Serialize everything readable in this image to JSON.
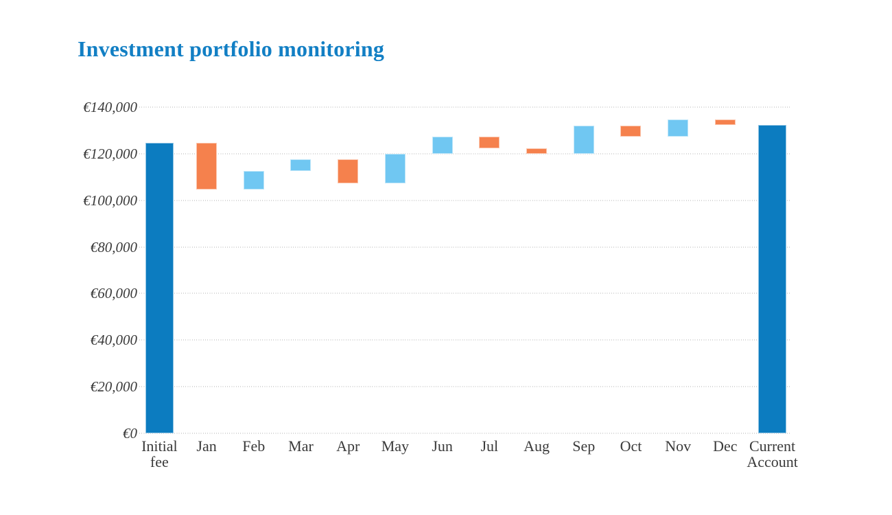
{
  "chart_data": {
    "type": "bar",
    "subtype": "waterfall",
    "title": "Investment portfolio monitoring",
    "currency_prefix": "€",
    "legend": "none",
    "categories": [
      "Initial fee",
      "Jan",
      "Feb",
      "Mar",
      "Apr",
      "May",
      "Jun",
      "Jul",
      "Aug",
      "Sep",
      "Oct",
      "Nov",
      "Dec",
      "Current Account"
    ],
    "bars": [
      {
        "label": "Initial fee",
        "label_lines": [
          "Initial",
          "fee"
        ],
        "role": "total",
        "start": 0,
        "end": 124800,
        "value": 124800
      },
      {
        "label": "Jan",
        "label_lines": [
          "Jan"
        ],
        "role": "decrease",
        "start": 124800,
        "end": 104700,
        "value": -20100
      },
      {
        "label": "Feb",
        "label_lines": [
          "Feb"
        ],
        "role": "increase",
        "start": 104700,
        "end": 112500,
        "value": 7800
      },
      {
        "label": "Mar",
        "label_lines": [
          "Mar"
        ],
        "role": "increase",
        "start": 112500,
        "end": 117500,
        "value": 5000
      },
      {
        "label": "Apr",
        "label_lines": [
          "Apr"
        ],
        "role": "decrease",
        "start": 117500,
        "end": 107400,
        "value": -10100
      },
      {
        "label": "May",
        "label_lines": [
          "May"
        ],
        "role": "increase",
        "start": 107400,
        "end": 119900,
        "value": 12500
      },
      {
        "label": "Jun",
        "label_lines": [
          "Jun"
        ],
        "role": "increase",
        "start": 119900,
        "end": 127200,
        "value": 7300
      },
      {
        "label": "Jul",
        "label_lines": [
          "Jul"
        ],
        "role": "decrease",
        "start": 127200,
        "end": 122300,
        "value": -4900
      },
      {
        "label": "Aug",
        "label_lines": [
          "Aug"
        ],
        "role": "decrease",
        "start": 122300,
        "end": 119900,
        "value": -2400
      },
      {
        "label": "Sep",
        "label_lines": [
          "Sep"
        ],
        "role": "increase",
        "start": 119900,
        "end": 132100,
        "value": 12200
      },
      {
        "label": "Oct",
        "label_lines": [
          "Oct"
        ],
        "role": "decrease",
        "start": 132100,
        "end": 127300,
        "value": -4800
      },
      {
        "label": "Nov",
        "label_lines": [
          "Nov"
        ],
        "role": "increase",
        "start": 127300,
        "end": 134700,
        "value": 7400
      },
      {
        "label": "Dec",
        "label_lines": [
          "Dec"
        ],
        "role": "decrease",
        "start": 134700,
        "end": 132400,
        "value": -2300
      },
      {
        "label": "Current Account",
        "label_lines": [
          "Current",
          "Account"
        ],
        "role": "total",
        "start": 0,
        "end": 132400,
        "value": 132400
      }
    ],
    "y_axis": {
      "min": 0,
      "max": 140000,
      "step": 20000,
      "tick_labels": [
        "€0",
        "€20,000",
        "€40,000",
        "€60,000",
        "€80,000",
        "€100,000",
        "€120,000",
        "€140,000"
      ]
    },
    "grid": {
      "orientation": "horizontal",
      "style": "dotted",
      "color": "#d8d8d8"
    },
    "colors": {
      "total": "#0c7cc0",
      "increase": "#70c7f2",
      "decrease": "#f5814d"
    },
    "theme": {
      "title_color": "#127fc4",
      "axis_text_color": "#3a3a3a",
      "background": "#ffffff"
    }
  }
}
